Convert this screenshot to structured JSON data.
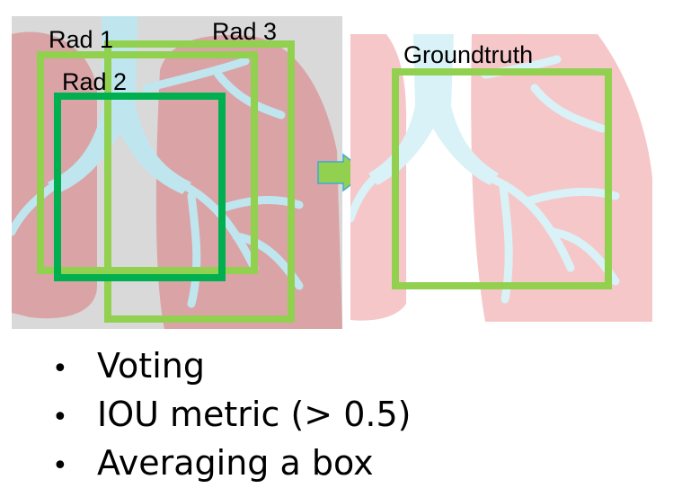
{
  "labels": {
    "rad1": "Rad 1",
    "rad2": "Rad 2",
    "rad3": "Rad 3",
    "groundtruth": "Groundtruth"
  },
  "bullets": [
    "Voting",
    "IOU metric (> 0.5)",
    "Averaging a box"
  ],
  "colors": {
    "lung": "#ef9fa1",
    "lung_light": "#f6c7c8",
    "airway": "#bfe6ef",
    "left_bg": "#d9d9d9",
    "box_light_green": "#92d050",
    "box_dark_green": "#00b050",
    "arrow_fill": "#92d050",
    "arrow_stroke": "#3da8d8"
  },
  "icons": {
    "arrow": "right-arrow-icon",
    "bullet": "bullet-dot-icon"
  }
}
